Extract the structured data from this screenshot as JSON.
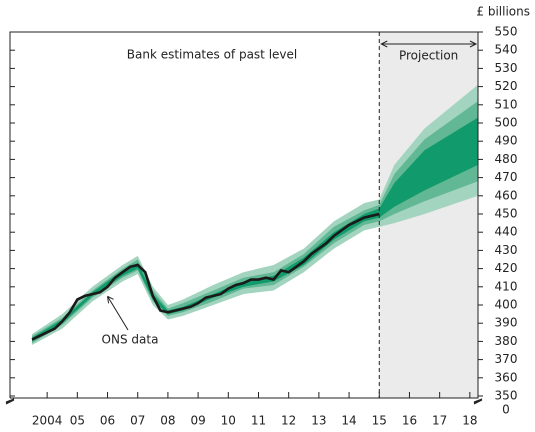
{
  "chart_data": {
    "type": "fan",
    "unit_label": "£ billions",
    "past_label": "Bank estimates of past level",
    "projection_label": "Projection",
    "annotation": "ONS data",
    "annotation_x": 2006.5,
    "annotation_y": 407,
    "axis_break_label": "0",
    "projection_start": 2015.5,
    "projection_color": "#ebebeb",
    "line_color": "#1a1a1a",
    "xlim": [
      2003.27,
      2018.77
    ],
    "ylim": [
      350,
      550
    ],
    "yticks": [
      350,
      360,
      370,
      380,
      390,
      400,
      410,
      420,
      430,
      440,
      450,
      460,
      470,
      480,
      490,
      500,
      510,
      520,
      530,
      540,
      550
    ],
    "xticks": [
      {
        "value": 2004.5,
        "label": "2004"
      },
      {
        "value": 2005.5,
        "label": "05"
      },
      {
        "value": 2006.5,
        "label": "06"
      },
      {
        "value": 2007.5,
        "label": "07"
      },
      {
        "value": 2008.5,
        "label": "08"
      },
      {
        "value": 2009.5,
        "label": "09"
      },
      {
        "value": 2010.5,
        "label": "10"
      },
      {
        "value": 2011.5,
        "label": "11"
      },
      {
        "value": 2012.5,
        "label": "12"
      },
      {
        "value": 2013.5,
        "label": "13"
      },
      {
        "value": 2014.5,
        "label": "14"
      },
      {
        "value": 2015.5,
        "label": "15"
      },
      {
        "value": 2016.5,
        "label": "16"
      },
      {
        "value": 2017.5,
        "label": "17"
      },
      {
        "value": 2018.5,
        "label": "18"
      }
    ],
    "x": [
      2004,
      2004.25,
      2004.5,
      2004.75,
      2005,
      2005.25,
      2005.5,
      2005.75,
      2006,
      2006.25,
      2006.5,
      2006.75,
      2007,
      2007.25,
      2007.5,
      2007.75,
      2008,
      2008.25,
      2008.5,
      2008.75,
      2009,
      2009.25,
      2009.5,
      2009.75,
      2010,
      2010.25,
      2010.5,
      2010.75,
      2011,
      2011.25,
      2011.5,
      2011.75,
      2012,
      2012.25,
      2012.5,
      2012.75,
      2013,
      2013.25,
      2013.5,
      2013.75,
      2014,
      2014.25,
      2014.5,
      2014.75,
      2015,
      2015.25,
      2015.5
    ],
    "values": [
      381,
      383,
      385,
      387,
      391,
      396,
      403,
      405,
      406,
      407,
      410,
      415,
      418,
      421,
      422,
      418,
      405,
      397,
      396,
      397,
      398,
      399,
      401,
      404,
      405,
      406,
      409,
      411,
      412,
      414,
      414,
      415,
      414,
      419,
      418,
      421,
      424,
      428,
      431,
      434,
      438,
      441,
      444,
      446,
      448,
      449,
      450
    ],
    "band_x": [
      2004,
      2005,
      2006,
      2007,
      2007.5,
      2008,
      2008.5,
      2009,
      2010,
      2011,
      2012,
      2013,
      2014,
      2015,
      2015.5,
      2016,
      2017,
      2018.77
    ],
    "bands": [
      {
        "color": "#a3d4bf",
        "lower": [
          378,
          387,
          402,
          413,
          417,
          400,
          392,
          394,
          400,
          406,
          408,
          418,
          431,
          441,
          443,
          445,
          450,
          460
        ],
        "upper": [
          384,
          395,
          410,
          422,
          427,
          410,
          400,
          403,
          411,
          418,
          422,
          431,
          446,
          456,
          458,
          477,
          497,
          521
        ]
      },
      {
        "color": "#62b894",
        "lower": [
          379,
          389,
          404,
          415,
          419,
          402,
          394,
          396,
          402,
          409,
          411,
          421,
          434,
          444,
          446,
          450,
          457,
          468
        ],
        "upper": [
          383,
          393,
          408,
          420,
          425,
          408,
          398,
          401,
          408,
          415,
          418,
          428,
          443,
          452,
          455,
          472,
          491,
          512
        ]
      },
      {
        "color": "#119a6c",
        "lower": [
          380,
          390,
          405,
          416,
          420,
          403,
          395,
          397,
          404,
          410,
          413,
          422,
          436,
          446,
          448,
          454,
          463,
          477
        ],
        "upper": [
          382,
          392,
          407,
          419,
          423,
          406,
          397,
          399,
          406,
          413,
          416,
          426,
          440,
          450,
          453,
          467,
          485,
          503
        ]
      }
    ]
  }
}
